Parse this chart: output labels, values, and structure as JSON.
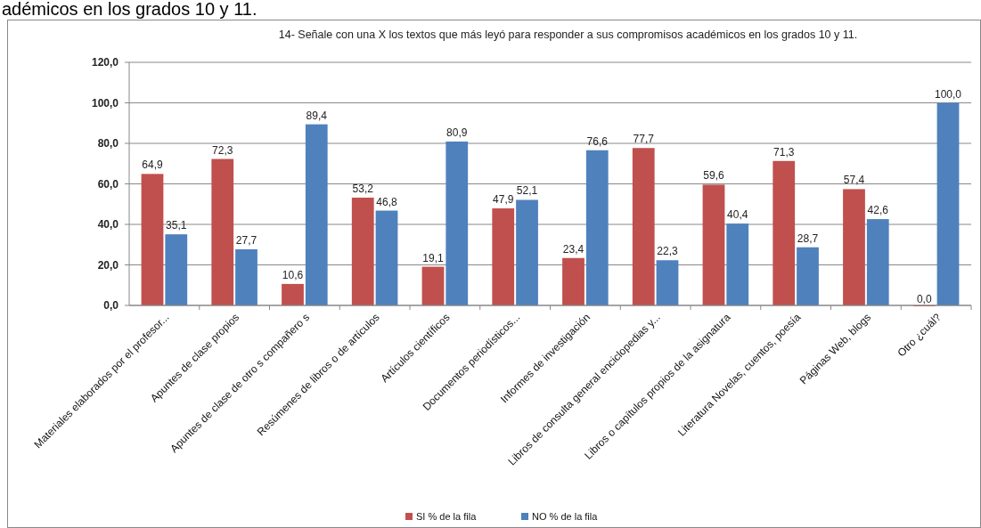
{
  "chart_data": {
    "type": "bar",
    "title": "14- Señale con una X los textos que más leyó para responder a sus compromisos académicos en los grados 10 y 11.",
    "annotations": [
      "adémicos en los grados 10 y 11."
    ],
    "categories": [
      "Materiales elaborados por el profesor...",
      "Apuntes de clase propios",
      "Apuntes de clase de otro s compañero s",
      "Resúmenes de libros o de artículos",
      "Artículos científicos",
      "Documentos periodísticos...",
      "Informes de investigación",
      "Libros de consulta general enciclopedias y...",
      "Libros o capítulos propios de la asignatura",
      "Literatura Novelas, cuentos, poesía",
      "Páginas Web, blogs",
      "Otro ¿cuál?"
    ],
    "series": [
      {
        "name": "SI % de la fila",
        "color": "#c0504d",
        "values": [
          64.9,
          72.3,
          10.6,
          53.2,
          19.1,
          47.9,
          23.4,
          77.7,
          59.6,
          71.3,
          57.4,
          0.0
        ],
        "value_labels": [
          "64,9",
          "72,3",
          "10,6",
          "53,2",
          "19,1",
          "47,9",
          "23,4",
          "77,7",
          "59,6",
          "71,3",
          "57,4",
          "0,0"
        ]
      },
      {
        "name": "NO % de la fila",
        "color": "#4f81bd",
        "values": [
          35.1,
          27.7,
          89.4,
          46.8,
          80.9,
          52.1,
          76.6,
          22.3,
          40.4,
          28.7,
          42.6,
          100.0
        ],
        "value_labels": [
          "35,1",
          "27,7",
          "89,4",
          "46,8",
          "80,9",
          "52,1",
          "76,6",
          "22,3",
          "40,4",
          "28,7",
          "42,6",
          "100,0"
        ]
      }
    ],
    "ylim": [
      0,
      120
    ],
    "yticks": [
      {
        "value": 0,
        "label": "0,0"
      },
      {
        "value": 20,
        "label": "20,0"
      },
      {
        "value": 40,
        "label": "40,0"
      },
      {
        "value": 60,
        "label": "60,0"
      },
      {
        "value": 80,
        "label": "80,0"
      },
      {
        "value": 100,
        "label": "100,0"
      },
      {
        "value": 120,
        "label": "120,0"
      }
    ],
    "grid": "y",
    "legend": "bottom"
  }
}
